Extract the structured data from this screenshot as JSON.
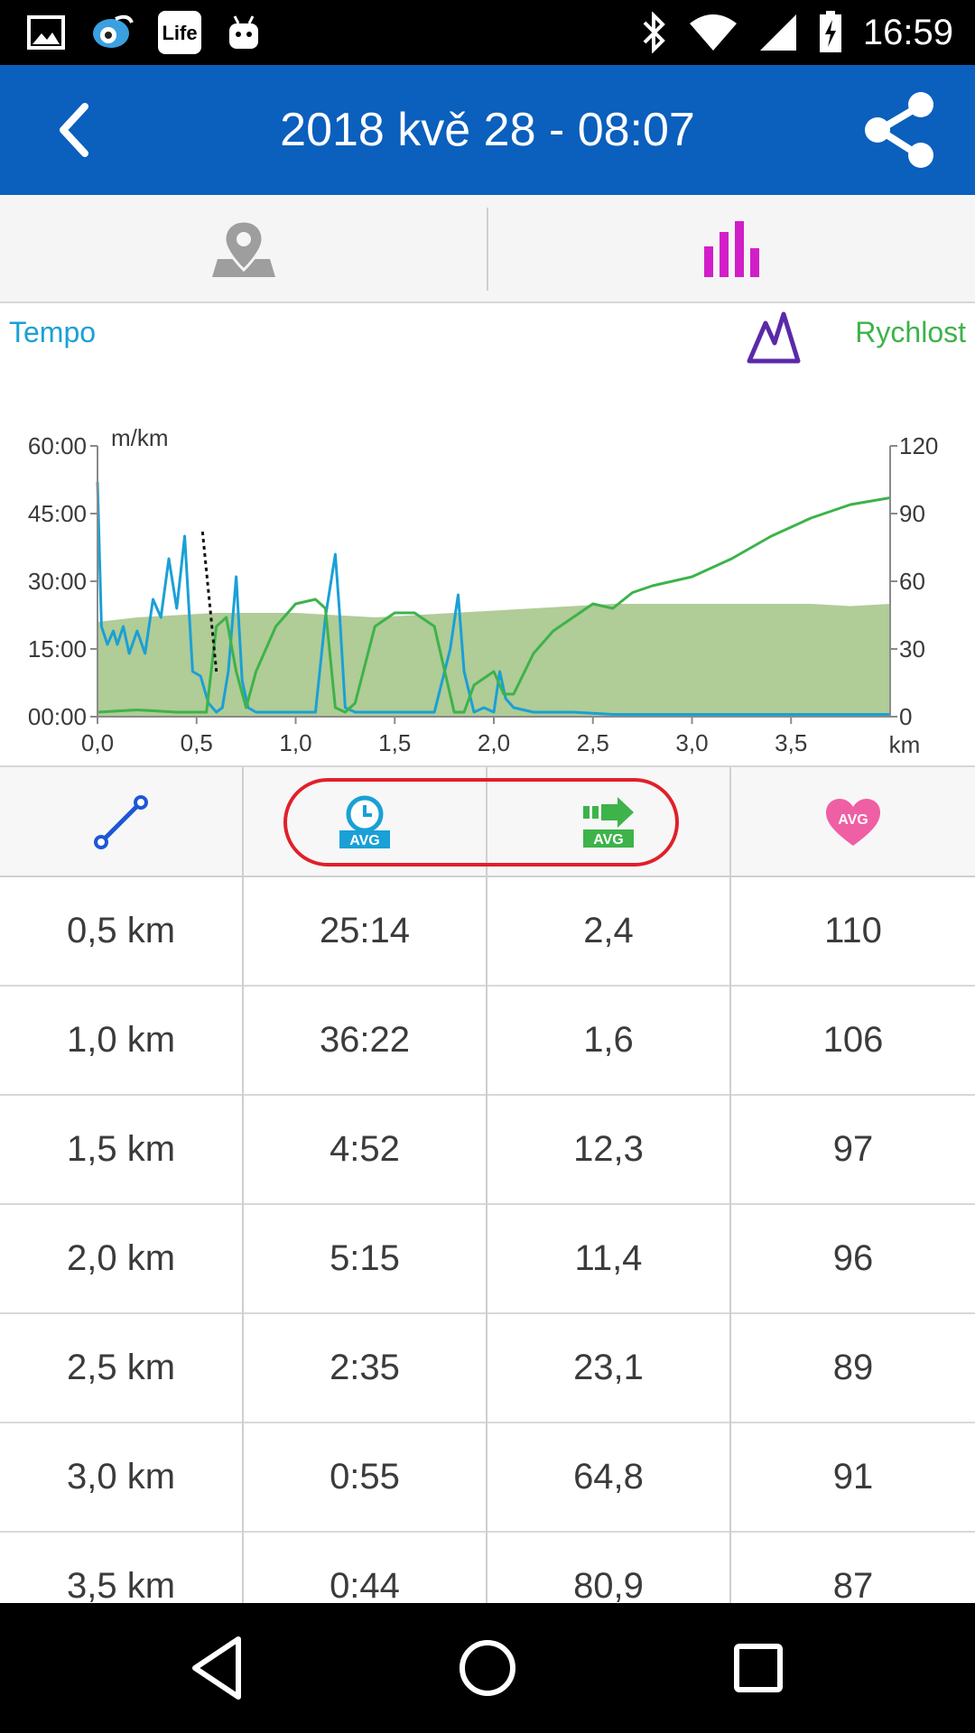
{
  "status_bar": {
    "time": "16:59",
    "left_icons": [
      "gallery-icon",
      "app-icon",
      "life-app-icon",
      "android-icon"
    ],
    "right_icons": [
      "bluetooth-icon",
      "wifi-icon",
      "signal-icon",
      "battery-charging-icon"
    ]
  },
  "app_bar": {
    "title": "2018 kvě 28 - 08:07",
    "back_icon": "back-arrow-icon",
    "share_icon": "share-icon",
    "color": "#0b5fbd"
  },
  "tabs": [
    {
      "icon": "map-pin-icon",
      "active": false
    },
    {
      "icon": "bar-chart-icon",
      "active": true,
      "color": "#d21ec8"
    }
  ],
  "chart_labels": {
    "left_legend": "Tempo",
    "right_legend": "Rychlost",
    "left_legend_color": "#1aa0d6",
    "right_legend_color": "#3db34a",
    "elevation_icon": "elevation-icon",
    "left_unit": "m/km",
    "x_unit": "km"
  },
  "chart_data": {
    "type": "line",
    "x_ticks": [
      "0,0",
      "0,5",
      "1,0",
      "1,5",
      "2,0",
      "2,5",
      "3,0",
      "3,5"
    ],
    "xlim": [
      0,
      4.0
    ],
    "y_left_ticks": [
      "60:00",
      "45:00",
      "30:00",
      "15:00",
      "00:00"
    ],
    "y_left_lim": [
      0,
      60
    ],
    "y_right_ticks": [
      "120",
      "90",
      "60",
      "30",
      "0"
    ],
    "y_right_lim": [
      0,
      120
    ],
    "series": [
      {
        "color": "#1aa0d6",
        "axis": "left",
        "x": [
          0.0,
          0.02,
          0.05,
          0.08,
          0.1,
          0.13,
          0.16,
          0.2,
          0.24,
          0.28,
          0.32,
          0.36,
          0.4,
          0.44,
          0.48,
          0.52,
          0.56,
          0.6,
          0.63,
          0.66,
          0.7,
          0.73,
          0.76,
          0.8,
          0.85,
          0.9,
          1.0,
          1.1,
          1.15,
          1.2,
          1.22,
          1.25,
          1.3,
          1.4,
          1.5,
          1.6,
          1.7,
          1.78,
          1.82,
          1.85,
          1.9,
          1.95,
          2.0,
          2.03,
          2.06,
          2.1,
          2.2,
          2.4,
          2.6,
          3.0,
          3.5,
          4.0
        ],
        "y": [
          52,
          20,
          16,
          19,
          16,
          20,
          14,
          19,
          14,
          26,
          22,
          35,
          24,
          40,
          10,
          9,
          3,
          1,
          2,
          10,
          31,
          8,
          2,
          1,
          1,
          1,
          1,
          1,
          22,
          36,
          24,
          2,
          1,
          1,
          1,
          1,
          1,
          15,
          27,
          10,
          1,
          2,
          1,
          10,
          4,
          2,
          1,
          1,
          0.5,
          0.5,
          0.5,
          0.5
        ]
      },
      {
        "color": "#3db34a",
        "axis": "right",
        "x": [
          0.0,
          0.2,
          0.4,
          0.55,
          0.6,
          0.65,
          0.7,
          0.75,
          0.8,
          0.9,
          1.0,
          1.1,
          1.15,
          1.2,
          1.25,
          1.3,
          1.4,
          1.5,
          1.6,
          1.7,
          1.8,
          1.85,
          1.9,
          2.0,
          2.05,
          2.1,
          2.2,
          2.3,
          2.4,
          2.5,
          2.6,
          2.7,
          2.8,
          3.0,
          3.2,
          3.4,
          3.6,
          3.8,
          4.0
        ],
        "y": [
          2,
          3,
          2,
          2,
          40,
          44,
          20,
          4,
          20,
          40,
          50,
          52,
          48,
          4,
          2,
          6,
          40,
          46,
          46,
          40,
          2,
          2,
          14,
          20,
          10,
          10,
          28,
          38,
          44,
          50,
          48,
          55,
          58,
          62,
          70,
          80,
          88,
          94,
          97
        ]
      }
    ],
    "elevation_area": {
      "color": "#b0cc97",
      "x": [
        0.0,
        0.2,
        0.4,
        0.6,
        0.8,
        1.0,
        1.2,
        1.4,
        1.6,
        1.8,
        2.0,
        2.2,
        2.4,
        2.6,
        2.8,
        3.0,
        3.2,
        3.4,
        3.6,
        3.8,
        4.0
      ],
      "y": [
        42,
        44,
        45,
        46,
        46,
        46,
        45,
        44,
        45,
        46,
        47,
        48,
        49,
        50,
        50,
        50,
        50,
        50,
        50,
        49,
        50
      ]
    },
    "dashed_segment": {
      "x": [
        0.53,
        0.6
      ],
      "y": [
        41,
        10
      ]
    }
  },
  "table": {
    "header_icons": [
      "distance-icon",
      "avg-pace-icon",
      "avg-speed-icon",
      "avg-heart-rate-icon"
    ],
    "rows": [
      {
        "distance": "0,5 km",
        "pace": "25:14",
        "speed": "2,4",
        "hr": "110"
      },
      {
        "distance": "1,0 km",
        "pace": "36:22",
        "speed": "1,6",
        "hr": "106"
      },
      {
        "distance": "1,5 km",
        "pace": "4:52",
        "speed": "12,3",
        "hr": "97"
      },
      {
        "distance": "2,0 km",
        "pace": "5:15",
        "speed": "11,4",
        "hr": "96"
      },
      {
        "distance": "2,5 km",
        "pace": "2:35",
        "speed": "23,1",
        "hr": "89"
      },
      {
        "distance": "3,0 km",
        "pace": "0:55",
        "speed": "64,8",
        "hr": "91"
      },
      {
        "distance": "3,5 km",
        "pace": "0:44",
        "speed": "80,9",
        "hr": "87"
      }
    ]
  },
  "nav_bar": {
    "icons": [
      "back-triangle-icon",
      "home-circle-icon",
      "recents-square-icon"
    ]
  }
}
